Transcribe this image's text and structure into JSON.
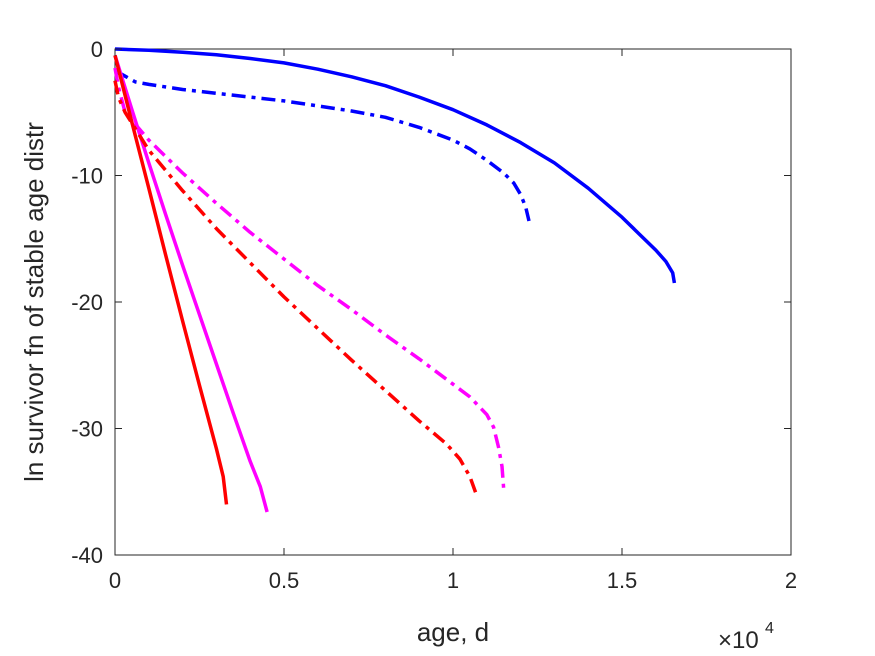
{
  "chart_data": {
    "type": "line",
    "title": "",
    "xlabel": "age, d",
    "ylabel": "ln survivor fn of stable age distr",
    "x_multiplier_label": "×10",
    "x_multiplier_exp": "4",
    "xlim": [
      0,
      20000
    ],
    "ylim": [
      -40,
      0
    ],
    "xticks": [
      0,
      5000,
      10000,
      15000,
      20000
    ],
    "xtick_labels": [
      "0",
      "0.5",
      "1",
      "1.5",
      "2"
    ],
    "yticks": [
      0,
      -10,
      -20,
      -30,
      -40
    ],
    "ytick_labels": [
      "0",
      "-10",
      "-20",
      "-30",
      "-40"
    ],
    "grid": false,
    "legend": "none",
    "series": [
      {
        "color": "#0000ff",
        "style": "solid",
        "x": [
          0,
          1000,
          2000,
          3000,
          4000,
          5000,
          6000,
          7000,
          8000,
          9000,
          10000,
          11000,
          12000,
          13000,
          14000,
          15000,
          15500,
          16000,
          16300,
          16500,
          16550
        ],
        "y": [
          0,
          -0.1,
          -0.25,
          -0.45,
          -0.75,
          -1.1,
          -1.6,
          -2.2,
          -2.9,
          -3.8,
          -4.8,
          -6.0,
          -7.4,
          -9.0,
          -11.0,
          -13.3,
          -14.6,
          -15.9,
          -16.8,
          -17.7,
          -18.5
        ]
      },
      {
        "color": "#0000ff",
        "style": "dashdot",
        "x": [
          0,
          200,
          400,
          600,
          1000,
          2000,
          3000,
          4000,
          5000,
          6000,
          7000,
          8000,
          9000,
          10000,
          10500,
          11000,
          11500,
          11800,
          12000,
          12150,
          12250
        ],
        "y": [
          -1.8,
          -2.0,
          -2.3,
          -2.6,
          -2.8,
          -3.2,
          -3.5,
          -3.8,
          -4.1,
          -4.5,
          -4.9,
          -5.4,
          -6.2,
          -7.2,
          -7.9,
          -8.8,
          -9.8,
          -10.6,
          -11.5,
          -12.5,
          -13.6
        ]
      },
      {
        "color": "#ff00ff",
        "style": "solid",
        "x": [
          0,
          500,
          1000,
          1500,
          2000,
          2500,
          3000,
          3500,
          4000,
          4300,
          4500
        ],
        "y": [
          -0.5,
          -4.8,
          -9.0,
          -13.1,
          -17.1,
          -21.0,
          -24.9,
          -28.8,
          -32.6,
          -34.6,
          -36.6
        ]
      },
      {
        "color": "#ff00ff",
        "style": "dashdot",
        "x": [
          0,
          100,
          300,
          1000,
          2000,
          3000,
          4000,
          5000,
          6000,
          7000,
          8000,
          9000,
          10000,
          10500,
          11000,
          11200,
          11350,
          11450,
          11500
        ],
        "y": [
          -1.5,
          -3.0,
          -5.0,
          -7.2,
          -9.8,
          -12.2,
          -14.5,
          -16.6,
          -18.7,
          -20.6,
          -22.6,
          -24.5,
          -26.5,
          -27.5,
          -28.9,
          -29.9,
          -31.5,
          -33.0,
          -34.8
        ]
      },
      {
        "color": "#ff0000",
        "style": "solid",
        "x": [
          0,
          500,
          1000,
          1500,
          2000,
          2500,
          3000,
          3200,
          3300
        ],
        "y": [
          -0.5,
          -5.8,
          -11.0,
          -16.3,
          -21.5,
          -26.6,
          -31.6,
          -33.8,
          -36.0
        ]
      },
      {
        "color": "#ff0000",
        "style": "dashdot",
        "x": [
          0,
          100,
          300,
          1000,
          2000,
          3000,
          4000,
          5000,
          6000,
          7000,
          8000,
          9000,
          9800,
          10200,
          10500,
          10700
        ],
        "y": [
          -2.5,
          -3.8,
          -5.0,
          -8.0,
          -11.2,
          -14.2,
          -16.9,
          -19.6,
          -22.1,
          -24.6,
          -27.0,
          -29.4,
          -31.2,
          -32.4,
          -33.8,
          -35.3
        ]
      }
    ]
  }
}
